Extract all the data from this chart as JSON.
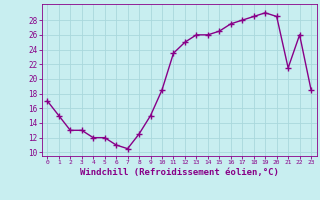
{
  "x_values": [
    0,
    1,
    2,
    3,
    4,
    5,
    6,
    7,
    8,
    9,
    10,
    11,
    12,
    13,
    14,
    15,
    16,
    17,
    18,
    19,
    20,
    21,
    22,
    23
  ],
  "y_values": [
    17,
    15,
    13,
    13,
    12,
    12,
    11,
    10.5,
    12.5,
    15,
    18.5,
    23.5,
    25,
    26,
    26,
    26.5,
    27.5,
    28,
    28.5,
    29,
    28.5,
    21.5,
    26,
    18.5
  ],
  "line_color": "#880088",
  "marker": "+",
  "marker_size": 4,
  "linewidth": 1.0,
  "xlabel": "Windchill (Refroidissement éolien,°C)",
  "xlabel_fontsize": 6.5,
  "ylabel_ticks": [
    10,
    12,
    14,
    16,
    18,
    20,
    22,
    24,
    26,
    28
  ],
  "ylim": [
    9.5,
    30.2
  ],
  "xlim": [
    -0.5,
    23.5
  ],
  "xtick_labels": [
    "0",
    "1",
    "2",
    "3",
    "4",
    "5",
    "6",
    "7",
    "8",
    "9",
    "10",
    "11",
    "12",
    "13",
    "14",
    "15",
    "16",
    "17",
    "18",
    "19",
    "20",
    "21",
    "22",
    "23"
  ],
  "bg_color": "#c8eef0",
  "grid_color": "#aad8dc",
  "tick_color": "#880088",
  "label_color": "#880088"
}
